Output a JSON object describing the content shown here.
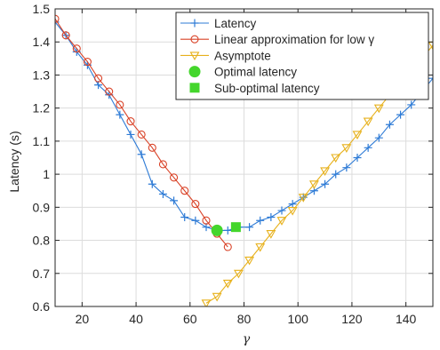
{
  "chart_data": {
    "type": "line",
    "xlabel": "γ",
    "ylabel": "Latency (s)",
    "xlim": [
      10,
      150
    ],
    "ylim": [
      0.6,
      1.5
    ],
    "xticks": [
      20,
      40,
      60,
      80,
      100,
      120,
      140
    ],
    "yticks": [
      0.6,
      0.7,
      0.8,
      0.9,
      1.0,
      1.1,
      1.2,
      1.3,
      1.4,
      1.5
    ],
    "xtick_labels": [
      "20",
      "40",
      "60",
      "80",
      "100",
      "120",
      "140"
    ],
    "ytick_labels": [
      "0.6",
      "0.7",
      "0.8",
      "0.9",
      "1",
      "1.1",
      "1.2",
      "1.3",
      "1.4",
      "1.5"
    ],
    "grid": true,
    "legend_position": "top-right",
    "colors": {
      "latency": "#2e7bd6",
      "linear": "#d94227",
      "asymptote": "#e7b11c",
      "optimal": "#44d62c",
      "suboptimal": "#44d62c",
      "grid": "#dcdcdc",
      "axis": "#262626"
    },
    "series": [
      {
        "name": "Latency",
        "marker": "plus",
        "x": [
          10,
          14,
          18,
          22,
          26,
          30,
          34,
          38,
          42,
          46,
          50,
          54,
          58,
          62,
          66,
          70,
          74,
          78,
          82,
          86,
          90,
          94,
          98,
          102,
          106,
          110,
          114,
          118,
          122,
          126,
          130,
          134,
          138,
          142,
          146,
          150
        ],
        "y": [
          1.46,
          1.42,
          1.37,
          1.33,
          1.27,
          1.24,
          1.18,
          1.12,
          1.06,
          0.97,
          0.94,
          0.92,
          0.87,
          0.86,
          0.84,
          0.83,
          0.83,
          0.84,
          0.84,
          0.86,
          0.87,
          0.89,
          0.91,
          0.93,
          0.95,
          0.97,
          1.0,
          1.02,
          1.05,
          1.08,
          1.11,
          1.15,
          1.18,
          1.21,
          1.25,
          1.29
        ]
      },
      {
        "name": "Linear approximation for low γ",
        "marker": "circle",
        "x": [
          10,
          14,
          18,
          22,
          26,
          30,
          34,
          38,
          42,
          46,
          50,
          54,
          58,
          62,
          66,
          70,
          74
        ],
        "y": [
          1.47,
          1.42,
          1.38,
          1.34,
          1.29,
          1.25,
          1.21,
          1.16,
          1.12,
          1.08,
          1.03,
          0.99,
          0.95,
          0.91,
          0.86,
          0.82,
          0.78
        ]
      },
      {
        "name": "Asymptote",
        "marker": "triangle-down",
        "x": [
          66,
          70,
          74,
          78,
          82,
          86,
          90,
          94,
          98,
          102,
          106,
          110,
          114,
          118,
          122,
          126,
          130,
          134,
          138,
          142,
          146,
          150
        ],
        "y": [
          0.61,
          0.63,
          0.67,
          0.7,
          0.74,
          0.78,
          0.82,
          0.86,
          0.89,
          0.93,
          0.97,
          1.01,
          1.05,
          1.08,
          1.12,
          1.16,
          1.2,
          1.24,
          1.27,
          1.31,
          1.35,
          1.39
        ]
      }
    ],
    "points": [
      {
        "name": "Optimal latency",
        "marker": "circle-filled",
        "x": 70,
        "y": 0.83
      },
      {
        "name": "Sub-optimal latency",
        "marker": "square-filled",
        "x": 77,
        "y": 0.84
      }
    ]
  }
}
